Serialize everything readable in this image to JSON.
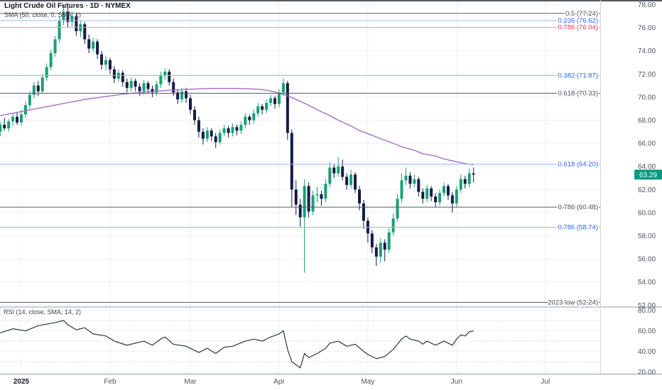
{
  "header": {
    "title": "Light Crude Oil Futures · 1D · NYMEX",
    "sma_legend": "SMA (50, close, 0, SMA, 1)"
  },
  "rsi": {
    "legend": "RSI (14, close, SMA, 14, 2)"
  },
  "chart_data": {
    "type": "candlestick",
    "title": "Light Crude Oil Futures",
    "interval": "1D",
    "exchange": "NYMEX",
    "last_price": "63.29",
    "price_axis_ticks": [
      "78.00",
      "76.00",
      "74.00",
      "72.00",
      "70.00",
      "68.00",
      "66.00",
      "64.00",
      "62.00",
      "60.00",
      "58.00",
      "56.00",
      "54.00",
      "52.00"
    ],
    "rsi_axis_ticks": [
      "80.00",
      "60.00",
      "40.00",
      "20.00"
    ],
    "rsi_bands": [
      70,
      50,
      30
    ],
    "months": [
      {
        "label": "2025",
        "bar": 5,
        "bold": true
      },
      {
        "label": "Feb",
        "bar": 26
      },
      {
        "label": "Mar",
        "bar": 45
      },
      {
        "label": "Apr",
        "bar": 66
      },
      {
        "label": "May",
        "bar": 87
      },
      {
        "label": "Jun",
        "bar": 108
      },
      {
        "label": "Jul",
        "bar": 129
      }
    ],
    "levels": [
      {
        "label": "0.5 (77.24)",
        "price": 77.24,
        "color": "gray"
      },
      {
        "label": "0.236 (76.62)",
        "price": 76.62,
        "color": "blue"
      },
      {
        "label": "0.786 (76.04)",
        "price": 76.04,
        "color": "red"
      },
      {
        "label": "0.382 (71.87)",
        "price": 71.87,
        "color": "blue"
      },
      {
        "label": "0.618 (70.33)",
        "price": 70.33,
        "color": "gray"
      },
      {
        "label": "0.618 (64.20)",
        "price": 64.2,
        "color": "blue"
      },
      {
        "label": "0.786 (60.48)",
        "price": 60.48,
        "color": "gray"
      },
      {
        "label": "0.786 (58.74)",
        "price": 58.74,
        "color": "blue"
      },
      {
        "label": "2023 low (52.24)",
        "price": 52.24,
        "color": "gray"
      }
    ],
    "ohlc": [
      [
        67.0,
        67.9,
        66.6,
        67.6
      ],
      [
        67.6,
        68.2,
        67.1,
        67.3
      ],
      [
        67.3,
        68.1,
        67.0,
        67.9
      ],
      [
        67.9,
        68.6,
        67.5,
        68.3
      ],
      [
        68.3,
        68.7,
        67.6,
        67.8
      ],
      [
        67.8,
        68.9,
        67.5,
        68.5
      ],
      [
        68.5,
        69.6,
        68.2,
        69.3
      ],
      [
        69.3,
        70.5,
        69.0,
        70.2
      ],
      [
        70.2,
        71.3,
        69.9,
        71.0
      ],
      [
        71.0,
        71.4,
        70.1,
        70.5
      ],
      [
        70.5,
        72.0,
        70.3,
        71.7
      ],
      [
        71.7,
        72.9,
        71.4,
        72.6
      ],
      [
        72.6,
        74.1,
        72.3,
        73.8
      ],
      [
        73.8,
        75.3,
        73.5,
        75.0
      ],
      [
        75.0,
        77.0,
        74.7,
        76.6
      ],
      [
        76.6,
        78.0,
        76.2,
        77.4
      ],
      [
        77.4,
        77.8,
        76.0,
        76.5
      ],
      [
        76.5,
        77.4,
        76.1,
        77.0
      ],
      [
        77.0,
        77.2,
        75.3,
        75.7
      ],
      [
        75.7,
        76.6,
        75.2,
        76.3
      ],
      [
        76.3,
        76.5,
        74.6,
        75.0
      ],
      [
        75.0,
        75.4,
        73.8,
        74.2
      ],
      [
        74.2,
        75.1,
        73.9,
        74.8
      ],
      [
        74.8,
        75.0,
        73.3,
        73.7
      ],
      [
        73.7,
        74.0,
        72.4,
        72.8
      ],
      [
        72.8,
        73.6,
        72.3,
        73.2
      ],
      [
        73.2,
        73.4,
        72.0,
        72.4
      ],
      [
        72.4,
        72.7,
        71.2,
        71.6
      ],
      [
        71.6,
        72.4,
        71.3,
        72.1
      ],
      [
        72.1,
        72.3,
        70.9,
        71.3
      ],
      [
        71.3,
        71.6,
        70.4,
        70.8
      ],
      [
        70.8,
        71.7,
        70.5,
        71.4
      ],
      [
        71.4,
        71.6,
        70.5,
        70.9
      ],
      [
        70.9,
        71.2,
        70.1,
        70.5
      ],
      [
        70.5,
        71.5,
        70.2,
        71.2
      ],
      [
        71.2,
        71.4,
        70.3,
        70.7
      ],
      [
        70.7,
        71.0,
        70.0,
        70.4
      ],
      [
        70.4,
        71.4,
        70.1,
        71.1
      ],
      [
        71.1,
        72.2,
        70.8,
        71.9
      ],
      [
        71.9,
        72.5,
        71.5,
        72.2
      ],
      [
        72.2,
        72.4,
        71.0,
        71.3
      ],
      [
        71.3,
        71.6,
        70.1,
        70.4
      ],
      [
        70.4,
        70.7,
        69.4,
        69.8
      ],
      [
        69.8,
        70.8,
        69.5,
        70.5
      ],
      [
        70.5,
        70.8,
        69.5,
        69.9
      ],
      [
        69.9,
        70.2,
        68.5,
        68.9
      ],
      [
        68.9,
        69.2,
        67.6,
        68.0
      ],
      [
        68.0,
        68.3,
        66.5,
        67.0
      ],
      [
        67.0,
        67.3,
        65.9,
        66.4
      ],
      [
        66.4,
        67.4,
        66.1,
        67.1
      ],
      [
        67.1,
        67.3,
        66.2,
        66.6
      ],
      [
        66.6,
        66.9,
        65.6,
        66.1
      ],
      [
        66.1,
        67.2,
        65.9,
        66.9
      ],
      [
        66.9,
        67.6,
        66.6,
        67.3
      ],
      [
        67.3,
        67.5,
        66.5,
        66.9
      ],
      [
        66.9,
        67.7,
        66.6,
        67.4
      ],
      [
        67.4,
        67.6,
        66.7,
        67.1
      ],
      [
        67.1,
        67.9,
        66.8,
        67.6
      ],
      [
        67.6,
        68.6,
        67.3,
        68.3
      ],
      [
        68.3,
        68.5,
        67.6,
        68.0
      ],
      [
        68.0,
        68.9,
        67.7,
        68.6
      ],
      [
        68.6,
        69.5,
        68.3,
        69.2
      ],
      [
        69.2,
        69.4,
        68.5,
        68.9
      ],
      [
        68.9,
        69.8,
        68.6,
        69.5
      ],
      [
        69.5,
        70.2,
        69.2,
        69.9
      ],
      [
        69.9,
        70.1,
        69.0,
        69.4
      ],
      [
        69.4,
        70.7,
        69.1,
        70.4
      ],
      [
        70.4,
        71.6,
        70.1,
        71.2
      ],
      [
        71.2,
        71.4,
        66.3,
        66.9
      ],
      [
        66.9,
        67.2,
        60.5,
        62.0
      ],
      [
        62.0,
        62.8,
        59.8,
        60.7
      ],
      [
        60.7,
        61.2,
        58.8,
        59.6
      ],
      [
        59.6,
        62.9,
        54.8,
        62.3
      ],
      [
        62.3,
        62.6,
        59.6,
        60.1
      ],
      [
        60.1,
        61.9,
        59.8,
        61.5
      ],
      [
        61.5,
        62.2,
        60.9,
        61.6
      ],
      [
        61.6,
        61.9,
        60.6,
        61.2
      ],
      [
        61.2,
        62.9,
        60.9,
        62.5
      ],
      [
        62.5,
        64.4,
        62.2,
        63.9
      ],
      [
        63.9,
        64.2,
        63.0,
        63.4
      ],
      [
        63.4,
        64.8,
        63.1,
        64.0
      ],
      [
        64.0,
        64.6,
        62.8,
        63.1
      ],
      [
        63.1,
        63.4,
        62.0,
        62.4
      ],
      [
        62.4,
        63.7,
        62.1,
        63.3
      ],
      [
        63.3,
        63.5,
        61.7,
        62.0
      ],
      [
        62.0,
        62.3,
        60.2,
        60.8
      ],
      [
        60.8,
        61.1,
        58.6,
        59.3
      ],
      [
        59.3,
        59.6,
        57.4,
        58.2
      ],
      [
        58.2,
        58.5,
        56.5,
        57.0
      ],
      [
        57.0,
        57.3,
        55.4,
        56.2
      ],
      [
        56.2,
        57.8,
        55.7,
        57.4
      ],
      [
        57.4,
        57.7,
        55.8,
        56.8
      ],
      [
        56.8,
        58.7,
        56.5,
        58.3
      ],
      [
        58.3,
        59.9,
        58.0,
        59.5
      ],
      [
        59.5,
        61.6,
        59.2,
        61.2
      ],
      [
        61.2,
        63.4,
        60.9,
        62.8
      ],
      [
        62.8,
        63.9,
        62.4,
        63.2
      ],
      [
        63.2,
        63.5,
        62.1,
        62.5
      ],
      [
        62.5,
        63.3,
        62.2,
        62.9
      ],
      [
        62.9,
        63.1,
        61.4,
        61.8
      ],
      [
        61.8,
        62.1,
        60.8,
        61.2
      ],
      [
        61.2,
        62.4,
        60.9,
        62.1
      ],
      [
        62.1,
        62.3,
        61.0,
        61.4
      ],
      [
        61.4,
        61.7,
        60.5,
        60.9
      ],
      [
        60.9,
        62.0,
        60.6,
        61.7
      ],
      [
        61.7,
        62.6,
        61.4,
        62.3
      ],
      [
        62.3,
        62.5,
        61.1,
        61.5
      ],
      [
        61.5,
        61.8,
        60.0,
        60.8
      ],
      [
        60.8,
        62.3,
        60.5,
        62.0
      ],
      [
        62.0,
        63.3,
        61.7,
        62.9
      ],
      [
        62.9,
        63.2,
        62.1,
        62.5
      ],
      [
        62.5,
        63.8,
        62.2,
        63.4
      ],
      [
        63.4,
        63.9,
        62.6,
        63.29
      ]
    ],
    "sma50_points": [
      [
        0,
        68.4
      ],
      [
        5,
        68.75
      ],
      [
        10,
        69.1
      ],
      [
        15,
        69.45
      ],
      [
        20,
        69.8
      ],
      [
        25,
        70.05
      ],
      [
        30,
        70.3
      ],
      [
        35,
        70.45
      ],
      [
        40,
        70.6
      ],
      [
        45,
        70.68
      ],
      [
        50,
        70.75
      ],
      [
        55,
        70.75
      ],
      [
        58,
        70.73
      ],
      [
        61,
        70.68
      ],
      [
        63,
        70.6
      ],
      [
        65,
        70.45
      ],
      [
        68,
        70.1
      ],
      [
        70,
        69.8
      ],
      [
        73,
        69.3
      ],
      [
        75,
        68.9
      ],
      [
        78,
        68.4
      ],
      [
        80,
        68.0
      ],
      [
        83,
        67.5
      ],
      [
        85,
        67.1
      ],
      [
        88,
        66.7
      ],
      [
        90,
        66.4
      ],
      [
        93,
        66.0
      ],
      [
        95,
        65.7
      ],
      [
        98,
        65.4
      ],
      [
        100,
        65.1
      ],
      [
        103,
        64.9
      ],
      [
        105,
        64.65
      ],
      [
        108,
        64.4
      ],
      [
        110,
        64.25
      ],
      [
        112,
        64.15
      ]
    ],
    "rsi_points": [
      [
        0,
        58
      ],
      [
        3,
        62
      ],
      [
        6,
        60
      ],
      [
        9,
        65
      ],
      [
        13,
        68
      ],
      [
        15,
        70
      ],
      [
        16,
        66
      ],
      [
        18,
        61
      ],
      [
        20,
        63
      ],
      [
        22,
        57
      ],
      [
        25,
        55
      ],
      [
        27,
        50
      ],
      [
        30,
        46
      ],
      [
        32,
        48
      ],
      [
        34,
        50
      ],
      [
        36,
        46
      ],
      [
        38,
        52
      ],
      [
        39,
        54
      ],
      [
        41,
        47
      ],
      [
        44,
        45
      ],
      [
        47,
        39
      ],
      [
        49,
        43
      ],
      [
        51,
        38
      ],
      [
        53,
        44
      ],
      [
        55,
        45
      ],
      [
        58,
        50
      ],
      [
        60,
        52
      ],
      [
        62,
        50
      ],
      [
        64,
        54
      ],
      [
        66,
        57
      ],
      [
        67,
        60
      ],
      [
        68,
        42
      ],
      [
        69,
        30
      ],
      [
        70,
        27
      ],
      [
        71,
        24
      ],
      [
        72,
        38
      ],
      [
        73,
        34
      ],
      [
        75,
        38
      ],
      [
        77,
        43
      ],
      [
        78,
        48
      ],
      [
        80,
        50
      ],
      [
        82,
        45
      ],
      [
        84,
        47
      ],
      [
        86,
        40
      ],
      [
        87,
        37
      ],
      [
        89,
        33
      ],
      [
        91,
        35
      ],
      [
        93,
        42
      ],
      [
        95,
        52
      ],
      [
        96,
        55
      ],
      [
        97,
        52
      ],
      [
        99,
        50
      ],
      [
        100,
        47
      ],
      [
        101,
        50
      ],
      [
        103,
        46
      ],
      [
        105,
        50
      ],
      [
        107,
        46
      ],
      [
        108,
        52
      ],
      [
        109,
        56
      ],
      [
        110,
        55
      ],
      [
        111,
        59
      ],
      [
        112,
        60
      ]
    ],
    "colors": {
      "up": "#17a076",
      "down": "#141b47",
      "sma": "#a26fc9",
      "rsi_line": "#2f3442",
      "grid": "#eef1f7",
      "axis_text": "#50535e",
      "badge_bg": "#089981",
      "badge_text": "#ffffff",
      "separator": "#9598a1",
      "axis_border": "#d1d4dc",
      "top_border": "#1b1f2e",
      "band_dotted": "#b8bcc9",
      "level_gray_line": "#555a64",
      "level_gray_text": "#4a4d57",
      "level_blue_line": "#9bb8f9",
      "level_blue_text": "#2962ff",
      "level_red_line": "#f79db0",
      "level_red_text": "#e8345a"
    }
  }
}
